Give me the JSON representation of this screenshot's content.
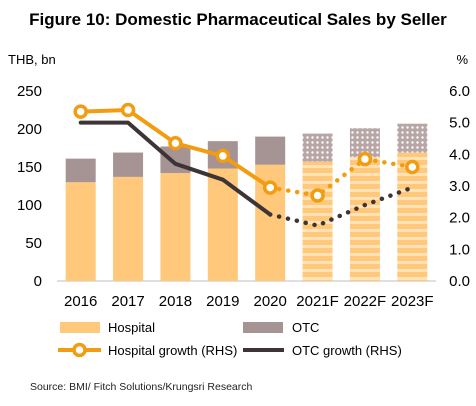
{
  "title": "Figure 10: Domestic Pharmaceutical Sales by Seller",
  "source": "Source: BMI/ Fitch Solutions/Krungsri Research",
  "chart_data": {
    "type": "bar",
    "categories": [
      "2016",
      "2017",
      "2018",
      "2019",
      "2020",
      "2021F",
      "2022F",
      "2023F"
    ],
    "forecast_start_index": 5,
    "y_left": {
      "unit_label": "THB, bn",
      "ylim": [
        0,
        250
      ],
      "ticks": [
        "0",
        "50",
        "100",
        "150",
        "200",
        "250"
      ]
    },
    "y_right": {
      "unit_label": "%",
      "ylim": [
        0,
        6
      ],
      "ticks": [
        "0.0",
        "1.0",
        "2.0",
        "3.0",
        "4.0",
        "5.0",
        "6.0"
      ]
    },
    "series": [
      {
        "name": "Hospital",
        "kind": "stacked-bar",
        "axis": "left",
        "color": "#FFC87A",
        "values": [
          130,
          137,
          142,
          148,
          153,
          157,
          163,
          169
        ]
      },
      {
        "name": "OTC",
        "kind": "stacked-bar",
        "axis": "left",
        "color": "#A69393",
        "values": [
          31,
          32,
          35,
          36,
          37,
          37,
          38,
          38
        ]
      },
      {
        "name": "Hospital growth (RHS)",
        "kind": "line",
        "axis": "right",
        "color": "#F29C11",
        "values": [
          5.35,
          5.4,
          4.35,
          3.95,
          2.95,
          2.7,
          3.85,
          3.6
        ]
      },
      {
        "name": "OTC growth (RHS)",
        "kind": "line",
        "axis": "right",
        "color": "#3D3535",
        "values": [
          5.0,
          5.0,
          3.7,
          3.2,
          2.1,
          1.75,
          2.4,
          2.95
        ]
      }
    ],
    "legend_position": "bottom",
    "grid": false
  }
}
